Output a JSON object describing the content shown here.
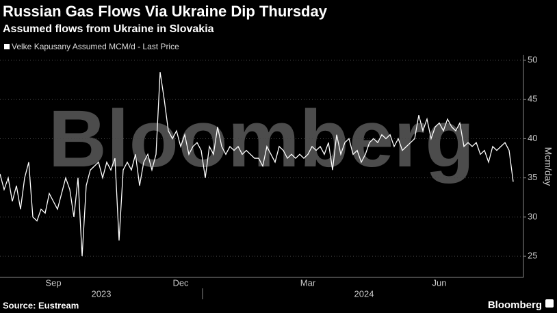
{
  "chart_data": {
    "type": "line",
    "title": "Russian Gas Flows Via Ukraine Dip Thursday",
    "subtitle": "Assumed flows from Ukraine in Slovakia",
    "y_axis_label": "Mcm/day",
    "watermark": "Bloomberg",
    "source": "Source: Eustream",
    "brand": "Bloomberg",
    "year_labels": [
      "2023",
      "2024"
    ],
    "categories": [
      null,
      null,
      null,
      null,
      null,
      null,
      null,
      null,
      null,
      null,
      null,
      null,
      null,
      "Sep",
      null,
      null,
      null,
      null,
      null,
      null,
      null,
      null,
      null,
      null,
      null,
      null,
      null,
      null,
      null,
      null,
      null,
      null,
      null,
      null,
      null,
      null,
      null,
      null,
      null,
      null,
      null,
      null,
      null,
      null,
      "Dec",
      null,
      null,
      null,
      null,
      null,
      null,
      null,
      null,
      null,
      null,
      null,
      null,
      null,
      null,
      null,
      null,
      null,
      null,
      null,
      null,
      null,
      null,
      null,
      null,
      null,
      null,
      null,
      null,
      null,
      null,
      "Mar",
      null,
      null,
      null,
      null,
      null,
      null,
      null,
      null,
      null,
      null,
      null,
      null,
      null,
      null,
      null,
      null,
      null,
      null,
      null,
      null,
      null,
      null,
      null,
      null,
      null,
      null,
      null,
      null,
      null,
      null,
      null,
      "Jun",
      null,
      null,
      null,
      null,
      null,
      null,
      null,
      null,
      null,
      null,
      null,
      null,
      null,
      null,
      null,
      null,
      null,
      null
    ],
    "series": [
      {
        "name": "Velke Kapusany Assumed MCM/d - Last Price",
        "color": "#ffffff",
        "values": [
          35.5,
          33.5,
          35,
          32,
          34,
          31,
          35,
          37,
          30,
          29.5,
          31,
          30.5,
          33,
          32,
          31,
          33,
          35,
          33.5,
          30,
          35,
          25,
          34,
          36,
          36.5,
          37,
          35,
          37,
          36,
          37.5,
          27,
          36,
          37,
          36,
          38,
          34,
          37,
          38,
          36,
          38,
          48.5,
          45,
          41,
          40,
          41,
          39,
          40.5,
          38,
          39,
          39.5,
          38.5,
          35,
          39,
          38,
          41.5,
          39,
          38,
          39,
          38.5,
          39,
          38,
          38.5,
          38,
          37.5,
          37.5,
          36.5,
          39,
          38,
          37,
          39,
          38.5,
          37.5,
          38,
          37.5,
          38,
          37.5,
          38,
          39,
          38.5,
          39,
          38,
          39.5,
          36,
          40.5,
          38,
          39.5,
          40,
          38,
          38.5,
          37,
          38,
          39.5,
          40,
          39.5,
          40.5,
          40,
          40.5,
          39,
          40,
          38.5,
          39,
          39.5,
          40,
          43,
          41,
          42.5,
          40,
          41.5,
          42,
          41,
          42.5,
          41.5,
          41,
          42,
          39,
          39.5,
          39,
          39.5,
          38,
          38.5,
          37,
          39,
          38.5,
          39,
          39.5,
          38.5,
          34.5
        ]
      }
    ],
    "ylim": [
      22.3,
      50.7
    ],
    "yticks": [
      25,
      30,
      35,
      40,
      45,
      50
    ],
    "grid": true
  }
}
